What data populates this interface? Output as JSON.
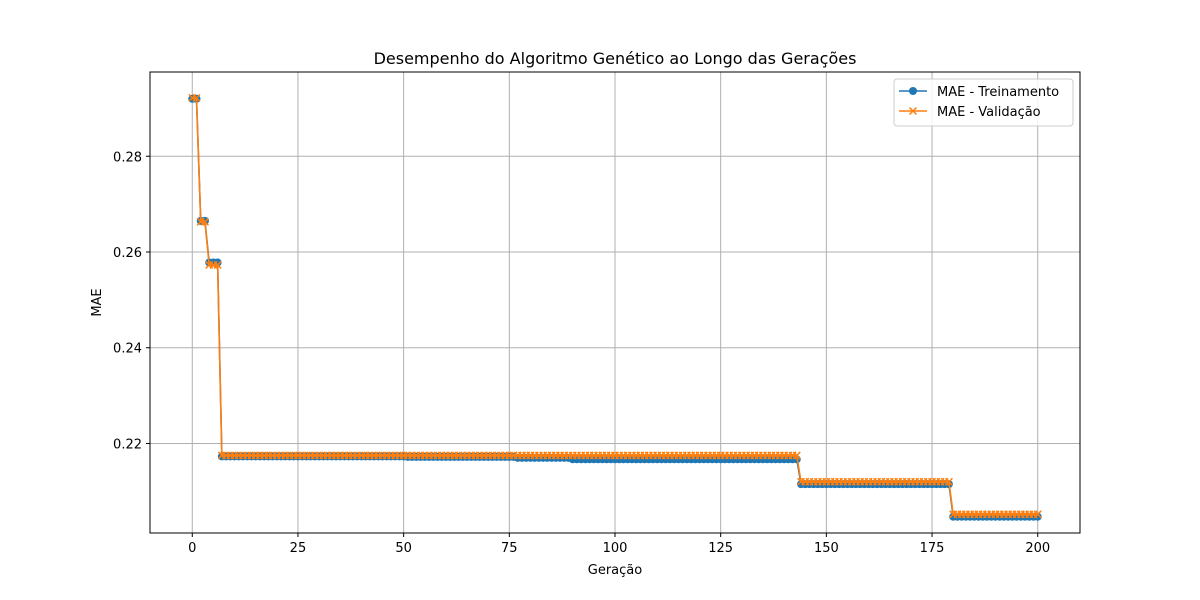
{
  "chart_data": {
    "type": "line",
    "title": "Desempenho do Algoritmo Genético ao Longo das Gerações",
    "xlabel": "Geração",
    "ylabel": "MAE",
    "xlim": [
      -10,
      210
    ],
    "ylim": [
      0.2013,
      0.2976
    ],
    "x_ticks": [
      0,
      25,
      50,
      75,
      100,
      125,
      150,
      175,
      200
    ],
    "y_ticks": [
      0.22,
      0.24,
      0.26,
      0.28
    ],
    "grid": true,
    "legend_position": "top-right",
    "x": {
      "start": 0,
      "end": 200,
      "step": 1
    },
    "series": [
      {
        "name": "MAE - Treinamento",
        "color": "#1f77b4",
        "marker": "circle",
        "segments": [
          {
            "from": 0,
            "to": 1,
            "value": 0.292
          },
          {
            "from": 2,
            "to": 3,
            "value": 0.2665
          },
          {
            "from": 4,
            "to": 6,
            "value": 0.2578
          },
          {
            "from": 7,
            "to": 50,
            "value": 0.2173
          },
          {
            "from": 51,
            "to": 76,
            "value": 0.2172
          },
          {
            "from": 77,
            "to": 89,
            "value": 0.217
          },
          {
            "from": 90,
            "to": 143,
            "value": 0.2167
          },
          {
            "from": 144,
            "to": 179,
            "value": 0.2115
          },
          {
            "from": 180,
            "to": 200,
            "value": 0.2047
          }
        ]
      },
      {
        "name": "MAE - Validação",
        "color": "#ff7f0e",
        "marker": "x",
        "segments": [
          {
            "from": 0,
            "to": 1,
            "value": 0.2922
          },
          {
            "from": 2,
            "to": 3,
            "value": 0.2663
          },
          {
            "from": 4,
            "to": 6,
            "value": 0.2573
          },
          {
            "from": 7,
            "to": 143,
            "value": 0.2175
          },
          {
            "from": 144,
            "to": 179,
            "value": 0.212
          },
          {
            "from": 180,
            "to": 200,
            "value": 0.2052
          }
        ]
      }
    ]
  }
}
